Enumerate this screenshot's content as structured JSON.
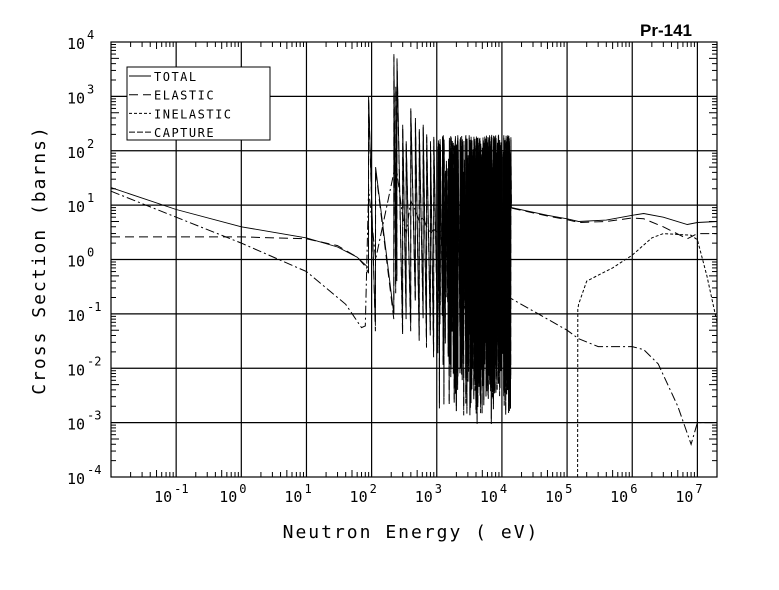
{
  "chart_data": {
    "type": "line",
    "title": "Pr-141",
    "xlabel": "Neutron Energy ( eV)",
    "ylabel": "Cross Section (barns)",
    "xscale": "log",
    "yscale": "log",
    "xlim": [
      0.01,
      20000000
    ],
    "ylim": [
      0.0001,
      10000
    ],
    "grid": true,
    "legend_position": "top-left",
    "x_tick_exponents": [
      -1,
      0,
      1,
      2,
      3,
      4,
      5,
      6,
      7
    ],
    "y_tick_exponents": [
      -4,
      -3,
      -2,
      -1,
      0,
      1,
      2,
      3,
      4
    ],
    "tick_base": "10",
    "series": [
      {
        "name": "TOTAL",
        "dash": "solid",
        "x": [
          0.01,
          0.1,
          1,
          10,
          30,
          60,
          80
        ],
        "y": [
          21,
          8.3,
          4.0,
          2.5,
          1.7,
          1.1,
          0.8
        ],
        "x_high": [
          14000,
          50000,
          100000,
          150000,
          400000,
          1000000,
          1500000,
          3000000,
          7000000,
          10000000,
          20000000
        ],
        "y_high": [
          9,
          6.5,
          5.6,
          5.0,
          5.3,
          6.5,
          7.0,
          6.0,
          4.4,
          4.8,
          5.0
        ]
      },
      {
        "name": "ELASTIC",
        "dash": "long",
        "x": [
          0.01,
          0.1,
          1,
          10,
          30,
          60,
          80
        ],
        "y": [
          2.6,
          2.6,
          2.6,
          2.4,
          1.8,
          1.1,
          0.75
        ],
        "x_high": [
          14000,
          50000,
          100000,
          150000,
          400000,
          1000000,
          1500000,
          3000000,
          7000000,
          10000000,
          20000000
        ],
        "y_high": [
          8.8,
          6.3,
          5.4,
          4.8,
          5.0,
          5.8,
          5.6,
          4.0,
          2.4,
          3.0,
          3.0
        ]
      },
      {
        "name": "INELASTIC",
        "dash": "short",
        "x_high": [
          145000,
          146000,
          150000,
          200000,
          500000,
          1000000,
          2000000,
          3000000,
          8000000,
          10000000,
          14000000,
          20000000
        ],
        "y_high": [
          0.0001,
          0.12,
          0.15,
          0.4,
          0.7,
          1.2,
          2.5,
          3.0,
          2.8,
          2.3,
          0.5,
          0.07
        ]
      },
      {
        "name": "CAPTURE",
        "dash": "dashdot",
        "x": [
          0.01,
          0.1,
          1,
          10,
          40,
          70,
          80
        ],
        "y": [
          18,
          6.0,
          2.0,
          0.6,
          0.15,
          0.056,
          0.06
        ],
        "x_high": [
          14000,
          50000,
          100000,
          150000,
          300000,
          1000000,
          1500000,
          2500000,
          5000000,
          8000000,
          10000000,
          20000000
        ],
        "y_high": [
          0.19,
          0.08,
          0.05,
          0.035,
          0.025,
          0.025,
          0.022,
          0.012,
          0.002,
          0.0004,
          0.001,
          0.001
        ]
      }
    ],
    "resolved_resonances": {
      "energies": [
        90,
        115,
        220,
        235,
        245,
        300,
        340,
        400,
        470,
        540,
        620,
        700,
        800,
        900
      ],
      "peaks": [
        1000,
        50,
        6000,
        1500,
        5000,
        300,
        150,
        600,
        400,
        250,
        300,
        200,
        150,
        180
      ],
      "minima": [
        0.7,
        0.06,
        0.1,
        0.3,
        0.5,
        0.05,
        0.1,
        0.06,
        0.2,
        0.04,
        0.1,
        0.03,
        0.05,
        0.02
      ]
    },
    "dense_resonance_band": {
      "emin": 1000,
      "emax": 14000,
      "count": 260,
      "peak_range": [
        40,
        200
      ],
      "min_range": [
        0.001,
        0.5
      ]
    }
  }
}
